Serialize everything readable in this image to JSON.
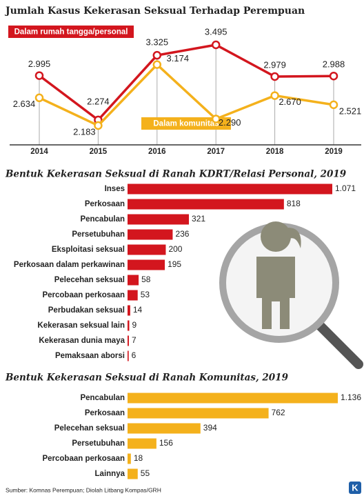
{
  "chart_data": [
    {
      "type": "line",
      "title": "Jumlah Kasus Kekerasan Seksual Terhadap Perempuan",
      "categories": [
        "2014",
        "2015",
        "2016",
        "2017",
        "2018",
        "2019"
      ],
      "series": [
        {
          "name": "Dalam rumah tangga/personal",
          "color": "#d3161e",
          "values": [
            2995,
            2274,
            3325,
            3495,
            2979,
            2988
          ],
          "value_labels": [
            "2.995",
            "2.274",
            "3.325",
            "3.495",
            "2.979",
            "2.988"
          ]
        },
        {
          "name": "Dalam komunitas",
          "color": "#f4b11c",
          "values": [
            2634,
            2183,
            3174,
            2290,
            2670,
            2521
          ],
          "value_labels": [
            "2.634",
            "2.183",
            "3.174",
            "2.290",
            "2.670",
            "2.521"
          ]
        }
      ]
    },
    {
      "type": "bar",
      "title": "Bentuk Kekerasan Seksual di Ranah KDRT/Relasi Personal, 2019",
      "color": "#d3161e",
      "categories": [
        "Inses",
        "Perkosaan",
        "Pencabulan",
        "Persetubuhan",
        "Eksploitasi seksual",
        "Perkosaan dalam perkawinan",
        "Pelecehan seksual",
        "Percobaan perkosaan",
        "Perbudakan seksual",
        "Kekerasan seksual lain",
        "Kekerasan dunia maya",
        "Pemaksaan aborsi"
      ],
      "values": [
        1071,
        818,
        321,
        236,
        200,
        195,
        58,
        53,
        14,
        9,
        7,
        6
      ],
      "value_labels": [
        "1.071",
        "818",
        "321",
        "236",
        "200",
        "195",
        "58",
        "53",
        "14",
        "9",
        "7",
        "6"
      ]
    },
    {
      "type": "bar",
      "title": "Bentuk Kekerasan Seksual di Ranah Komunitas, 2019",
      "color": "#f4b11c",
      "categories": [
        "Pencabulan",
        "Perkosaan",
        "Pelecehan seksual",
        "Persetubuhan",
        "Percobaan perkosaan",
        "Lainnya"
      ],
      "values": [
        1136,
        762,
        394,
        156,
        18,
        55
      ],
      "value_labels": [
        "1.136",
        "762",
        "394",
        "156",
        "18",
        "55"
      ]
    }
  ],
  "source": "Sumber: Komnas Perempuan; Diolah Litbang Kompas/GRH",
  "logo": "K"
}
